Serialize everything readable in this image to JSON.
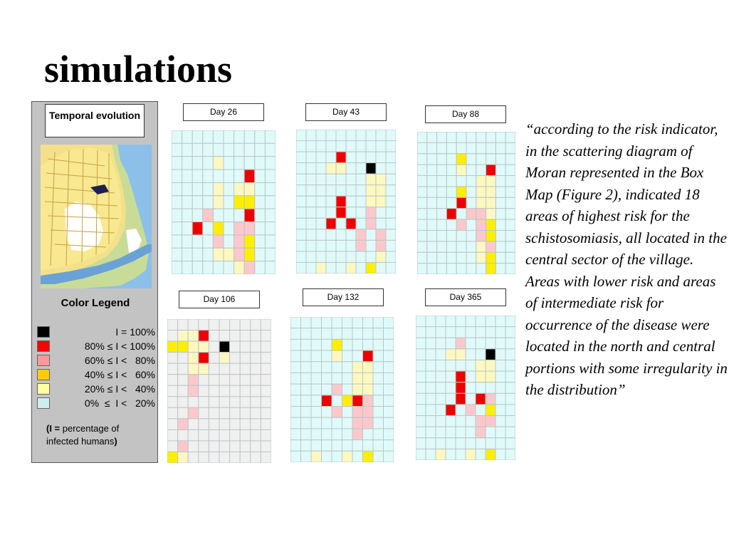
{
  "title": "simulations",
  "legend": {
    "heading": "Temporal evolution",
    "color_legend_title": "Color Legend",
    "items": [
      {
        "label": "I = 100%",
        "color": "#000000"
      },
      {
        "label": "80% ≤ I < 100%",
        "color": "#ff0000"
      },
      {
        "label": "60% ≤ I <   80%",
        "color": "#ff9999"
      },
      {
        "label": "40% ≤ I <   60%",
        "color": "#ffcc00"
      },
      {
        "label": "20% ≤ I <   40%",
        "color": "#ffffa0"
      },
      {
        "label": "0%  ≤  I <   20%",
        "color": "#cceeee"
      }
    ],
    "note_prefix": "(I = ",
    "note_text": "percentage of infected humans",
    "note_suffix": ")"
  },
  "colors": {
    "0": "#e0fafa",
    "1": "#fdf8c0",
    "2": "#ffee00",
    "3": "#fcc8cc",
    "4": "#ee0000",
    "5": "#000000",
    "g": "#f0f0f0",
    "line": "#bcc6c6"
  },
  "panels": [
    {
      "label": "Day 26",
      "rows": [
        "0000000000",
        "0000000000",
        "0000100000",
        "0000000400",
        "0000101100",
        "0000102200",
        "0003000400",
        "0040203300",
        "0000303200",
        "0000113200",
        "0000001300"
      ]
    },
    {
      "label": "Day 43",
      "rows": [
        "0000000000",
        "0000000000",
        "0000400000",
        "0001100500",
        "0000000110",
        "0000000110",
        "0000400110",
        "0000400300",
        "0004040300",
        "0000003030",
        "0000003030",
        "0000000010",
        "0010010200"
      ]
    },
    {
      "label": "Day 88",
      "rows": [
        "0000000000",
        "0000000000",
        "0000200000",
        "0000100400",
        "0000001100",
        "0000201100",
        "0000401100",
        "0004033100",
        "0000303200",
        "0000003200",
        "0000001300",
        "0000001200",
        "0000000200"
      ]
    },
    {
      "label": "Day 106",
      "rows": [
        "gggggggggg",
        "g114gggggg",
        "2211g5gggg",
        "gg14g1gggg",
        "gg11gggggg",
        "gg3ggggggg",
        "gg3ggggggg",
        "gggggggggg",
        "gg3ggggggg",
        "g3gggggggg",
        "gggggggggg",
        "g3gggggggg",
        "21gggggggg"
      ]
    },
    {
      "label": "Day 132",
      "rows": [
        "0000000000",
        "0000000000",
        "0000200000",
        "0000100400",
        "0000001100",
        "0000001100",
        "0000301100",
        "0004024300",
        "0000303300",
        "0000003300",
        "0000003000",
        "0000000000",
        "0010010200"
      ]
    },
    {
      "label": "Day 365",
      "rows": [
        "0000000000",
        "0000000000",
        "0000300000",
        "0001100500",
        "0000001100",
        "0000401100",
        "0000400000",
        "0000404300",
        "0004030200",
        "0000003300",
        "0000003000",
        "0000000000",
        "0010010200"
      ]
    }
  ],
  "quote": "“according to the risk indicator, in the scattering diagram of Moran represented in the Box Map (Figure 2), indicated 18 areas of highest risk for the schistosomiasis, all located in the central sector of the village. Areas with lower risk and areas of intermediate risk for occurrence of the disease were located in the north and central portions with some irregularity in the distribution”"
}
